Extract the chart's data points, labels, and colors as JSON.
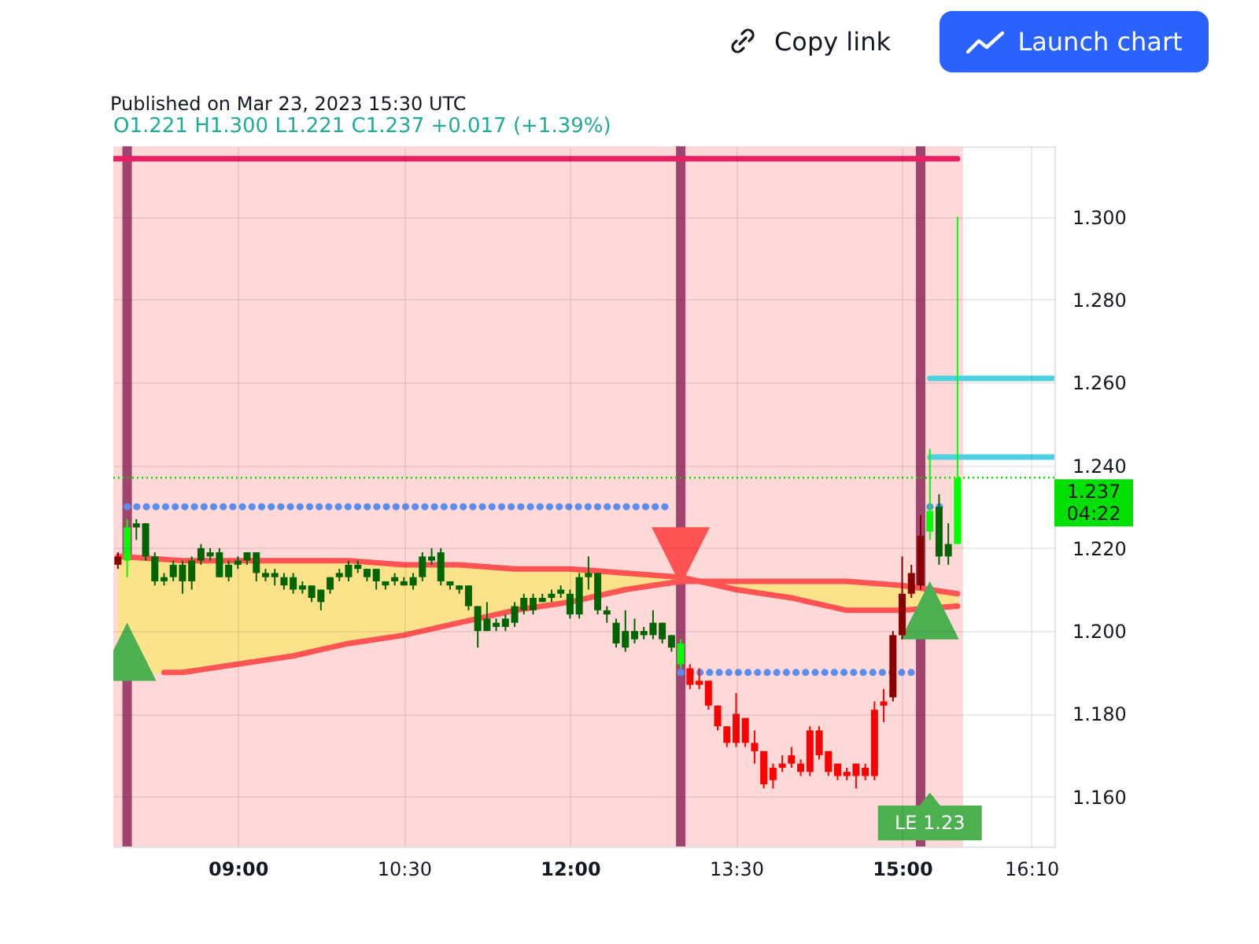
{
  "chart_data": {
    "type": "candlestick",
    "title": "O1.221 H1.300 L1.221 C1.237 +0.017 (+1.39%)",
    "x": [
      7.9167,
      8,
      8.0833,
      8.1667,
      8.25,
      8.3333,
      8.4167,
      8.5,
      8.5833,
      8.6667,
      8.75,
      8.8333,
      8.9167,
      9,
      9.0833,
      9.1667,
      9.25,
      9.3333,
      9.4167,
      9.5,
      9.5833,
      9.6667,
      9.75,
      9.8333,
      9.9167,
      10,
      10.0833,
      10.1667,
      10.25,
      10.3333,
      10.4167,
      10.5,
      10.5833,
      10.6667,
      10.75,
      10.8333,
      10.9167,
      11,
      11.0833,
      11.1667,
      11.25,
      11.3333,
      11.4167,
      11.5,
      11.5833,
      11.6667,
      11.75,
      11.8333,
      11.9167,
      12,
      12.0833,
      12.1667,
      12.25,
      12.3333,
      12.4167,
      12.5,
      12.5833,
      12.6667,
      12.75,
      12.8333,
      12.9167,
      13,
      13.0833,
      13.1667,
      13.25,
      13.3333,
      13.4167,
      13.5,
      13.5833,
      13.6667,
      13.75,
      13.8333,
      13.9167,
      14,
      14.0833,
      14.1667,
      14.25,
      14.3333,
      14.4167,
      14.5,
      14.5833,
      14.6667,
      14.75,
      14.8333,
      14.9167,
      15,
      15.0833,
      15.1667,
      15.25,
      15.3333,
      15.4167,
      15.5
    ],
    "ohlc": [
      [
        1.218,
        1.219,
        1.215,
        1.216
      ],
      [
        1.217,
        1.227,
        1.213,
        1.225
      ],
      [
        1.225,
        1.227,
        1.222,
        1.226
      ],
      [
        1.218,
        1.226,
        1.217,
        1.226
      ],
      [
        1.212,
        1.219,
        1.211,
        1.218
      ],
      [
        1.212,
        1.214,
        1.211,
        1.213
      ],
      [
        1.213,
        1.217,
        1.212,
        1.216
      ],
      [
        1.212,
        1.217,
        1.209,
        1.216
      ],
      [
        1.212,
        1.218,
        1.21,
        1.217
      ],
      [
        1.217,
        1.221,
        1.216,
        1.22
      ],
      [
        1.218,
        1.22,
        1.217,
        1.219
      ],
      [
        1.213,
        1.22,
        1.213,
        1.219
      ],
      [
        1.213,
        1.217,
        1.212,
        1.216
      ],
      [
        1.216,
        1.218,
        1.215,
        1.217
      ],
      [
        1.217,
        1.219,
        1.216,
        1.219
      ],
      [
        1.214,
        1.219,
        1.212,
        1.219
      ],
      [
        1.213,
        1.215,
        1.212,
        1.214
      ],
      [
        1.213,
        1.215,
        1.211,
        1.214
      ],
      [
        1.211,
        1.214,
        1.21,
        1.213
      ],
      [
        1.21,
        1.214,
        1.209,
        1.213
      ],
      [
        1.21,
        1.212,
        1.209,
        1.211
      ],
      [
        1.208,
        1.211,
        1.207,
        1.211
      ],
      [
        1.207,
        1.21,
        1.205,
        1.21
      ],
      [
        1.21,
        1.213,
        1.209,
        1.213
      ],
      [
        1.213,
        1.215,
        1.212,
        1.214
      ],
      [
        1.213,
        1.217,
        1.212,
        1.216
      ],
      [
        1.215,
        1.217,
        1.214,
        1.216
      ],
      [
        1.213,
        1.215,
        1.212,
        1.215
      ],
      [
        1.212,
        1.215,
        1.21,
        1.215
      ],
      [
        1.211,
        1.212,
        1.21,
        1.212
      ],
      [
        1.212,
        1.214,
        1.211,
        1.213
      ],
      [
        1.211,
        1.213,
        1.211,
        1.212
      ],
      [
        1.211,
        1.214,
        1.21,
        1.213
      ],
      [
        1.213,
        1.219,
        1.212,
        1.218
      ],
      [
        1.217,
        1.22,
        1.216,
        1.218
      ],
      [
        1.212,
        1.22,
        1.211,
        1.219
      ],
      [
        1.211,
        1.212,
        1.21,
        1.212
      ],
      [
        1.21,
        1.211,
        1.209,
        1.211
      ],
      [
        1.206,
        1.211,
        1.205,
        1.211
      ],
      [
        1.2,
        1.206,
        1.196,
        1.206
      ],
      [
        1.2,
        1.207,
        1.2,
        1.203
      ],
      [
        1.201,
        1.203,
        1.2,
        1.202
      ],
      [
        1.201,
        1.204,
        1.2,
        1.203
      ],
      [
        1.202,
        1.207,
        1.201,
        1.206
      ],
      [
        1.205,
        1.209,
        1.204,
        1.208
      ],
      [
        1.205,
        1.209,
        1.204,
        1.208
      ],
      [
        1.207,
        1.209,
        1.207,
        1.208
      ],
      [
        1.208,
        1.21,
        1.207,
        1.209
      ],
      [
        1.209,
        1.211,
        1.208,
        1.21
      ],
      [
        1.204,
        1.21,
        1.203,
        1.209
      ],
      [
        1.204,
        1.214,
        1.203,
        1.213
      ],
      [
        1.213,
        1.218,
        1.21,
        1.214
      ],
      [
        1.205,
        1.214,
        1.204,
        1.214
      ],
      [
        1.204,
        1.206,
        1.202,
        1.205
      ],
      [
        1.197,
        1.203,
        1.196,
        1.202
      ],
      [
        1.196,
        1.205,
        1.195,
        1.2
      ],
      [
        1.198,
        1.203,
        1.197,
        1.2
      ],
      [
        1.199,
        1.201,
        1.198,
        1.2
      ],
      [
        1.199,
        1.205,
        1.198,
        1.202
      ],
      [
        1.198,
        1.202,
        1.197,
        1.202
      ],
      [
        1.196,
        1.199,
        1.195,
        1.199
      ],
      [
        1.192,
        1.198,
        1.191,
        1.197
      ],
      [
        1.191,
        1.192,
        1.186,
        1.187
      ],
      [
        1.188,
        1.191,
        1.186,
        1.187
      ],
      [
        1.188,
        1.188,
        1.181,
        1.182
      ],
      [
        1.182,
        1.182,
        1.176,
        1.177
      ],
      [
        1.177,
        1.177,
        1.172,
        1.173
      ],
      [
        1.18,
        1.185,
        1.172,
        1.173
      ],
      [
        1.179,
        1.179,
        1.172,
        1.173
      ],
      [
        1.173,
        1.176,
        1.168,
        1.171
      ],
      [
        1.171,
        1.171,
        1.162,
        1.163
      ],
      [
        1.167,
        1.168,
        1.162,
        1.164
      ],
      [
        1.168,
        1.17,
        1.166,
        1.167
      ],
      [
        1.17,
        1.172,
        1.167,
        1.168
      ],
      [
        1.168,
        1.169,
        1.165,
        1.166
      ],
      [
        1.176,
        1.177,
        1.165,
        1.166
      ],
      [
        1.176,
        1.177,
        1.169,
        1.17
      ],
      [
        1.171,
        1.171,
        1.165,
        1.166
      ],
      [
        1.168,
        1.168,
        1.164,
        1.165
      ],
      [
        1.166,
        1.167,
        1.164,
        1.165
      ],
      [
        1.168,
        1.168,
        1.162,
        1.165
      ],
      [
        1.167,
        1.168,
        1.164,
        1.165
      ],
      [
        1.181,
        1.183,
        1.164,
        1.165
      ],
      [
        1.183,
        1.186,
        1.178,
        1.182
      ],
      [
        1.199,
        1.2,
        1.183,
        1.184
      ],
      [
        1.209,
        1.218,
        1.198,
        1.199
      ],
      [
        1.214,
        1.216,
        1.208,
        1.209
      ],
      [
        1.223,
        1.228,
        1.21,
        1.211
      ],
      [
        1.224,
        1.244,
        1.222,
        1.229
      ],
      [
        1.218,
        1.233,
        1.216,
        1.23
      ],
      [
        1.218,
        1.226,
        1.216,
        1.221
      ],
      [
        1.221,
        1.3,
        1.221,
        1.237
      ]
    ],
    "colors": [
      "#880000",
      "#00ff00",
      "#006400",
      "#006400",
      "#006400",
      "#006400",
      "#006400",
      "#006400",
      "#006400",
      "#006400",
      "#006400",
      "#006400",
      "#006400",
      "#006400",
      "#006400",
      "#006400",
      "#006400",
      "#006400",
      "#006400",
      "#006400",
      "#006400",
      "#006400",
      "#006400",
      "#006400",
      "#006400",
      "#006400",
      "#006400",
      "#006400",
      "#006400",
      "#006400",
      "#006400",
      "#006400",
      "#006400",
      "#006400",
      "#006400",
      "#006400",
      "#006400",
      "#006400",
      "#006400",
      "#006400",
      "#006400",
      "#006400",
      "#006400",
      "#006400",
      "#006400",
      "#006400",
      "#006400",
      "#006400",
      "#006400",
      "#006400",
      "#006400",
      "#006400",
      "#006400",
      "#006400",
      "#006400",
      "#006400",
      "#006400",
      "#006400",
      "#006400",
      "#006400",
      "#006400",
      "#00ff00",
      "#ff0000",
      "#ff0000",
      "#ff0000",
      "#ff0000",
      "#ff0000",
      "#ff0000",
      "#ff0000",
      "#ff0000",
      "#ff0000",
      "#ff0000",
      "#ff0000",
      "#ff0000",
      "#ff0000",
      "#ff0000",
      "#ff0000",
      "#ff0000",
      "#ff0000",
      "#ff0000",
      "#ff0000",
      "#ff0000",
      "#ff0000",
      "#ff0000",
      "#880000",
      "#880000",
      "#880000",
      "#880000",
      "#00ff00",
      "#006400",
      "#006400",
      "#00ff00"
    ],
    "series": [
      {
        "type": "line",
        "color": "#ff5252",
        "x": [
          7.9167,
          8.5,
          9,
          9.5,
          10,
          10.5,
          11,
          11.5,
          12,
          12.5,
          13,
          13.5,
          14,
          14.5,
          15,
          15.5
        ],
        "values": [
          1.218,
          1.217,
          1.217,
          1.217,
          1.217,
          1.216,
          1.216,
          1.215,
          1.215,
          1.214,
          1.213,
          1.21,
          1.208,
          1.205,
          1.205,
          1.206
        ],
        "lower": [
          1.189,
          1.19,
          1.192,
          1.194,
          1.197,
          1.199,
          1.202,
          1.205,
          1.207,
          1.21,
          1.212,
          1.21,
          1.208,
          1.205,
          1.205,
          1.206
        ],
        "upper": [
          1.218,
          1.217,
          1.217,
          1.217,
          1.217,
          1.216,
          1.216,
          1.215,
          1.215,
          1.214,
          1.213,
          1.212,
          1.212,
          1.212,
          1.211,
          1.209
        ]
      },
      {
        "type": "line",
        "color": "#fe5454",
        "x": [
          8.3333,
          8.5,
          9,
          9.5,
          10,
          10.5,
          11,
          11.5,
          12,
          12.5,
          13,
          13.5,
          14,
          14.5,
          15,
          15.5
        ],
        "values": [
          1.19,
          1.19,
          1.192,
          1.194,
          1.197,
          1.199,
          1.202,
          1.205,
          1.207,
          1.21,
          1.212,
          1.212,
          1.212,
          1.212,
          1.211,
          1.209
        ]
      },
      {
        "type": "line",
        "color": "#e91e63",
        "x": [
          7.875,
          15.5
        ],
        "values": [
          1.314,
          1.314
        ]
      },
      {
        "type": "line",
        "color": "#5b8def",
        "line_style": "dotted",
        "x": [
          8,
          12.9167,
          12.95,
          13,
          15.1667,
          15.2,
          15.25,
          15.4167
        ],
        "values": [
          1.23,
          1.23,
          null,
          1.19,
          1.19,
          null,
          1.23,
          1.23
        ]
      },
      {
        "type": "line",
        "color": "#4dd0e1",
        "x": [
          15.25,
          16.375
        ],
        "values": [
          1.261,
          1.261
        ]
      },
      {
        "type": "line",
        "color": "#4dd0e1",
        "x": [
          15.25,
          16.375
        ],
        "values": [
          1.242,
          1.242
        ]
      },
      {
        "type": "scatter",
        "color": "#4caf50",
        "marker": "triangle",
        "x": [
          8,
          15.25
        ],
        "values": [
          1.195,
          1.205
        ]
      },
      {
        "type": "scatter",
        "color": "#ff5252",
        "marker": "triangle-down",
        "x": [
          13
        ],
        "values": [
          1.218
        ]
      }
    ],
    "ref_lines": [
      {
        "axis": "x",
        "value": 8,
        "color": "#a0446e"
      },
      {
        "axis": "x",
        "value": 13,
        "color": "#a0446e"
      },
      {
        "axis": "x",
        "value": 15.1667,
        "color": "#a0446e"
      },
      {
        "axis": "y",
        "value": 1.237,
        "label": "1.237",
        "color": "#00e000",
        "line_style": "dotted"
      }
    ],
    "bands": [
      {
        "axis": "x",
        "from": 7.875,
        "to": 15.55,
        "color": "#ffd8d8"
      }
    ],
    "annotations": [
      "Published on Mar 23, 2023 15:30 UTC",
      "04:22",
      {
        "text": "LE 1.23",
        "x": 15.25,
        "y": 1.161
      },
      "Copy link",
      "Launch chart"
    ],
    "xlim": [
      7.875,
      16.375
    ],
    "ylim": [
      1.148,
      1.317
    ],
    "xticks": [
      {
        "value": 9,
        "label": "09:00"
      },
      {
        "value": 10.5,
        "label": "10:30"
      },
      {
        "value": 12,
        "label": "12:00"
      },
      {
        "value": 13.5,
        "label": "13:30"
      },
      {
        "value": 15,
        "label": "15:00"
      },
      {
        "value": 16.1667,
        "label": "16:10"
      }
    ],
    "yticks": [
      {
        "value": 1.16,
        "label": "1.160"
      },
      {
        "value": 1.18,
        "label": "1.180"
      },
      {
        "value": 1.2,
        "label": "1.200"
      },
      {
        "value": 1.22,
        "label": "1.220"
      },
      {
        "value": 1.24,
        "label": "1.240"
      },
      {
        "value": 1.26,
        "label": "1.260"
      },
      {
        "value": 1.28,
        "label": "1.280"
      },
      {
        "value": 1.3,
        "label": "1.300"
      }
    ],
    "grid": true
  }
}
